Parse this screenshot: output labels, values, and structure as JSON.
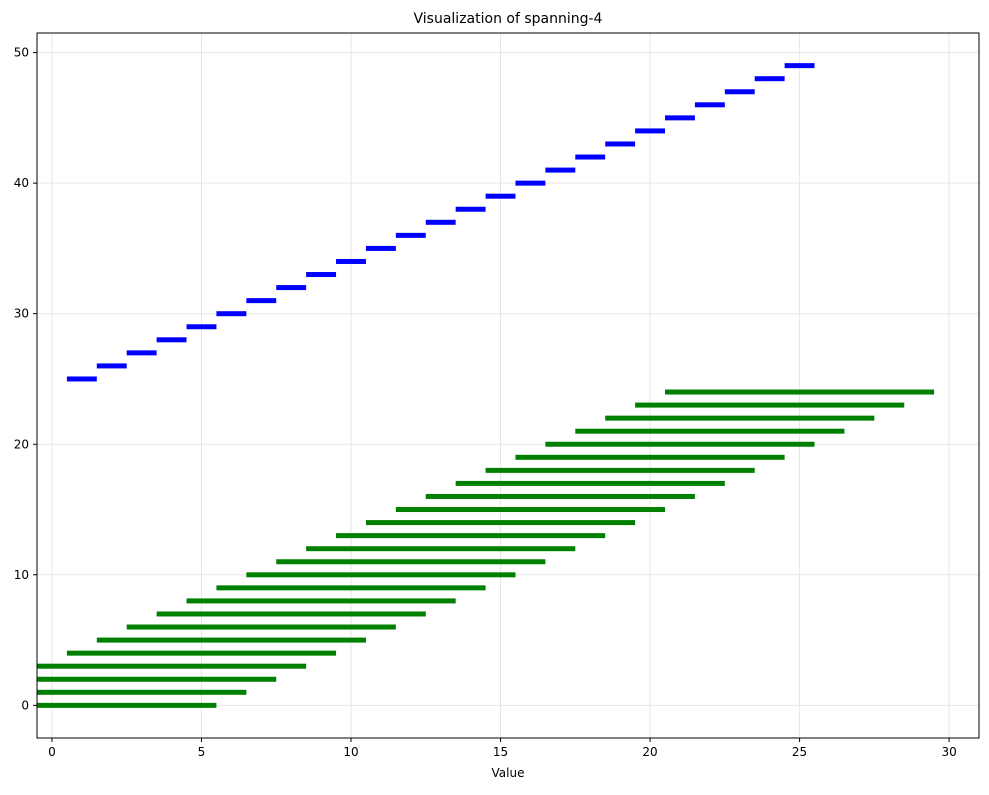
{
  "chart_data": {
    "type": "bar",
    "orientation": "horizontal",
    "title": "Visualization of spanning-4",
    "xlabel": "Value",
    "ylabel": "",
    "xlim": [
      -0.5,
      31
    ],
    "ylim": [
      -2.5,
      51.5
    ],
    "xticks": [
      0,
      5,
      10,
      15,
      20,
      25,
      30
    ],
    "yticks": [
      0,
      10,
      20,
      30,
      40,
      50
    ],
    "grid": true,
    "series": [
      {
        "color": "#008000",
        "intervals": [
          {
            "y": 0,
            "start": -0.5,
            "end": 5.5
          },
          {
            "y": 1,
            "start": -0.5,
            "end": 6.5
          },
          {
            "y": 2,
            "start": -0.5,
            "end": 7.5
          },
          {
            "y": 3,
            "start": -0.5,
            "end": 8.5
          },
          {
            "y": 4,
            "start": 0.5,
            "end": 9.5
          },
          {
            "y": 5,
            "start": 1.5,
            "end": 10.5
          },
          {
            "y": 6,
            "start": 2.5,
            "end": 11.5
          },
          {
            "y": 7,
            "start": 3.5,
            "end": 12.5
          },
          {
            "y": 8,
            "start": 4.5,
            "end": 13.5
          },
          {
            "y": 9,
            "start": 5.5,
            "end": 14.5
          },
          {
            "y": 10,
            "start": 6.5,
            "end": 15.5
          },
          {
            "y": 11,
            "start": 7.5,
            "end": 16.5
          },
          {
            "y": 12,
            "start": 8.5,
            "end": 17.5
          },
          {
            "y": 13,
            "start": 9.5,
            "end": 18.5
          },
          {
            "y": 14,
            "start": 10.5,
            "end": 19.5
          },
          {
            "y": 15,
            "start": 11.5,
            "end": 20.5
          },
          {
            "y": 16,
            "start": 12.5,
            "end": 21.5
          },
          {
            "y": 17,
            "start": 13.5,
            "end": 22.5
          },
          {
            "y": 18,
            "start": 14.5,
            "end": 23.5
          },
          {
            "y": 19,
            "start": 15.5,
            "end": 24.5
          },
          {
            "y": 20,
            "start": 16.5,
            "end": 25.5
          },
          {
            "y": 21,
            "start": 17.5,
            "end": 26.5
          },
          {
            "y": 22,
            "start": 18.5,
            "end": 27.5
          },
          {
            "y": 23,
            "start": 19.5,
            "end": 28.5
          },
          {
            "y": 24,
            "start": 20.5,
            "end": 29.5
          }
        ]
      },
      {
        "color": "#0000ff",
        "intervals": [
          {
            "y": 25,
            "start": 0.5,
            "end": 1.5
          },
          {
            "y": 26,
            "start": 1.5,
            "end": 2.5
          },
          {
            "y": 27,
            "start": 2.5,
            "end": 3.5
          },
          {
            "y": 28,
            "start": 3.5,
            "end": 4.5
          },
          {
            "y": 29,
            "start": 4.5,
            "end": 5.5
          },
          {
            "y": 30,
            "start": 5.5,
            "end": 6.5
          },
          {
            "y": 31,
            "start": 6.5,
            "end": 7.5
          },
          {
            "y": 32,
            "start": 7.5,
            "end": 8.5
          },
          {
            "y": 33,
            "start": 8.5,
            "end": 9.5
          },
          {
            "y": 34,
            "start": 9.5,
            "end": 10.5
          },
          {
            "y": 35,
            "start": 10.5,
            "end": 11.5
          },
          {
            "y": 36,
            "start": 11.5,
            "end": 12.5
          },
          {
            "y": 37,
            "start": 12.5,
            "end": 13.5
          },
          {
            "y": 38,
            "start": 13.5,
            "end": 14.5
          },
          {
            "y": 39,
            "start": 14.5,
            "end": 15.5
          },
          {
            "y": 40,
            "start": 15.5,
            "end": 16.5
          },
          {
            "y": 41,
            "start": 16.5,
            "end": 17.5
          },
          {
            "y": 42,
            "start": 17.5,
            "end": 18.5
          },
          {
            "y": 43,
            "start": 18.5,
            "end": 19.5
          },
          {
            "y": 44,
            "start": 19.5,
            "end": 20.5
          },
          {
            "y": 45,
            "start": 20.5,
            "end": 21.5
          },
          {
            "y": 46,
            "start": 21.5,
            "end": 22.5
          },
          {
            "y": 47,
            "start": 22.5,
            "end": 23.5
          },
          {
            "y": 48,
            "start": 23.5,
            "end": 24.5
          },
          {
            "y": 49,
            "start": 24.5,
            "end": 25.5
          }
        ]
      }
    ]
  }
}
